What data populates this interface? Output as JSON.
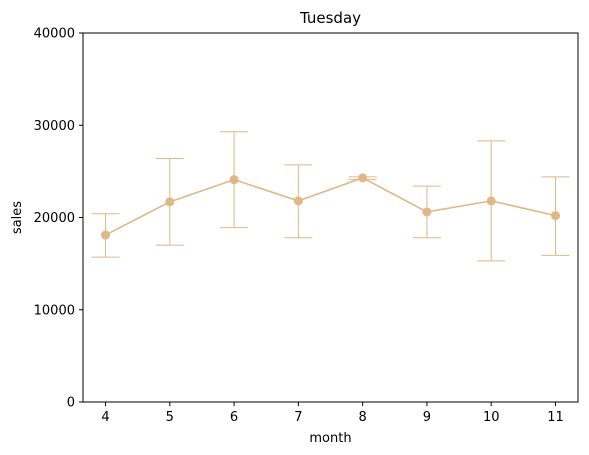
{
  "chart_data": {
    "type": "line",
    "title": "Tuesday",
    "xlabel": "month",
    "ylabel": "sales",
    "x": [
      4,
      5,
      6,
      7,
      8,
      9,
      10,
      11
    ],
    "series": [
      {
        "values": [
          18100,
          21700,
          24100,
          21800,
          24300,
          20600,
          21800,
          20200
        ],
        "error_low": [
          15700,
          17000,
          18900,
          17800,
          24100,
          17800,
          15300,
          15900
        ],
        "error_high": [
          20400,
          26400,
          29300,
          25700,
          24400,
          23400,
          28300,
          24400
        ]
      }
    ],
    "xticks": [
      "4",
      "5",
      "6",
      "7",
      "8",
      "9",
      "10",
      "11"
    ],
    "yticks": [
      "0",
      "10000",
      "20000",
      "30000",
      "40000"
    ],
    "xlim": [
      3.65,
      11.35
    ],
    "ylim": [
      0,
      40000
    ],
    "grid": false,
    "color": "#deb887"
  }
}
